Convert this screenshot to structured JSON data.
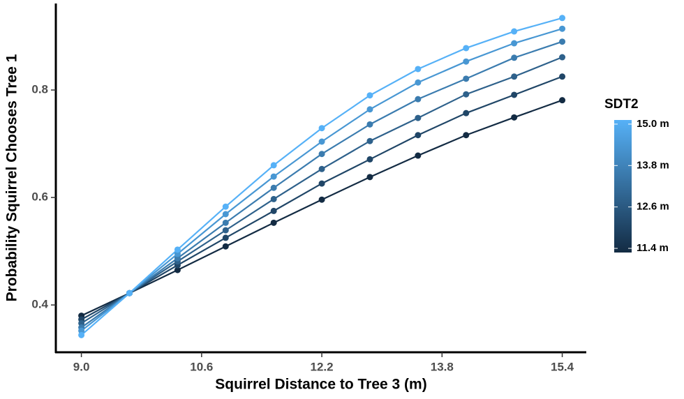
{
  "chart_data": {
    "type": "line",
    "x_label": "Squirrel Distance to Tree 3 (m)",
    "y_label": "Probability Squirrel Chooses Tree 1",
    "x": [
      9.0,
      9.64,
      10.28,
      10.92,
      11.56,
      12.2,
      12.84,
      13.48,
      14.12,
      14.76,
      15.4
    ],
    "series": [
      {
        "color": "#132B43",
        "values": [
          0.38,
          0.422,
          0.465,
          0.509,
          0.553,
          0.596,
          0.638,
          0.678,
          0.716,
          0.749,
          0.781
        ]
      },
      {
        "color": "#204667",
        "values": [
          0.373,
          0.422,
          0.474,
          0.525,
          0.575,
          0.626,
          0.671,
          0.716,
          0.757,
          0.791,
          0.825
        ]
      },
      {
        "color": "#2E618B",
        "values": [
          0.366,
          0.422,
          0.481,
          0.539,
          0.597,
          0.653,
          0.705,
          0.748,
          0.792,
          0.825,
          0.861
        ]
      },
      {
        "color": "#3B7CAF",
        "values": [
          0.358,
          0.422,
          0.487,
          0.553,
          0.618,
          0.681,
          0.736,
          0.783,
          0.821,
          0.86,
          0.89
        ]
      },
      {
        "color": "#4897D3",
        "values": [
          0.352,
          0.422,
          0.495,
          0.569,
          0.639,
          0.704,
          0.764,
          0.814,
          0.853,
          0.887,
          0.914
        ]
      },
      {
        "color": "#56B1F7",
        "values": [
          0.344,
          0.422,
          0.503,
          0.583,
          0.66,
          0.729,
          0.79,
          0.839,
          0.878,
          0.909,
          0.934
        ]
      }
    ],
    "xlim": [
      8.66,
      15.72
    ],
    "xticks": [
      {
        "value": 9.0,
        "label": "9.0"
      },
      10.6,
      12.2,
      13.8,
      15.4
    ],
    "ylim": [
      0.312,
      0.961
    ],
    "yticks": [
      0.4,
      0.6,
      0.8
    ],
    "colorbar": {
      "title": "SDT2",
      "lim": [
        11.28,
        15.12
      ],
      "colors": [
        "#132B43",
        "#56B1F7"
      ],
      "ticks": [
        {
          "value": 11.4,
          "label": "11.4 m"
        },
        {
          "value": 12.6,
          "label": "12.6 m"
        },
        {
          "value": 13.8,
          "label": "13.8 m"
        },
        {
          "value": 15.0,
          "label": "15.0 m"
        }
      ]
    }
  }
}
